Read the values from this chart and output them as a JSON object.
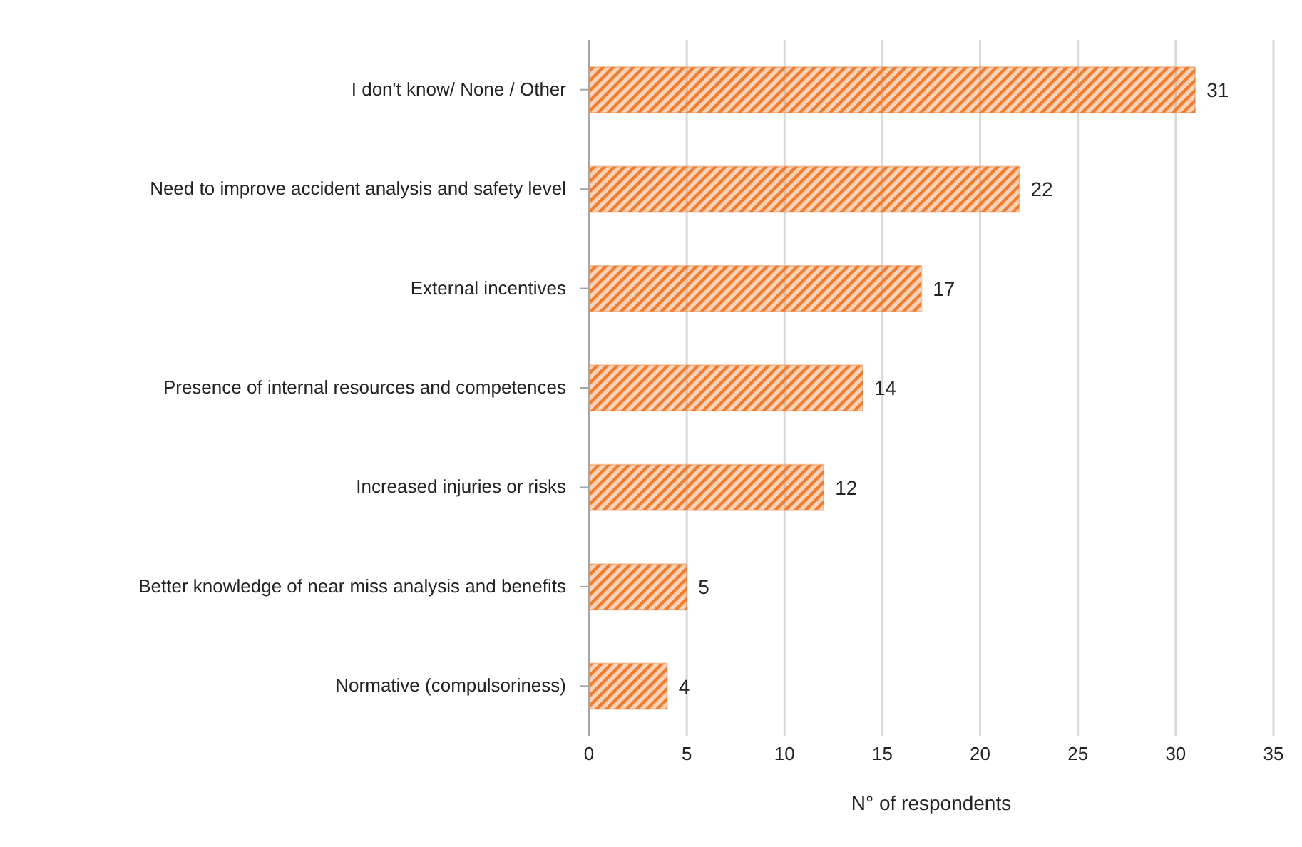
{
  "chart_data": {
    "type": "bar",
    "orientation": "horizontal",
    "xlabel": "N° of respondents",
    "categories": [
      "I don't know/ None / Other",
      "Need to improve accident analysis and safety level",
      "External incentives",
      "Presence of internal resources and competences",
      "Increased injuries or risks",
      "Better knowledge of near miss analysis and benefits",
      "Normative (compulsoriness)"
    ],
    "values": [
      31,
      22,
      17,
      14,
      12,
      5,
      4
    ],
    "color": "#ed7d31",
    "xlim": [
      0,
      35
    ],
    "xticks": [
      0,
      5,
      10,
      15,
      20,
      25,
      30,
      35
    ],
    "grid": "x",
    "data_labels": true,
    "legend": false
  }
}
